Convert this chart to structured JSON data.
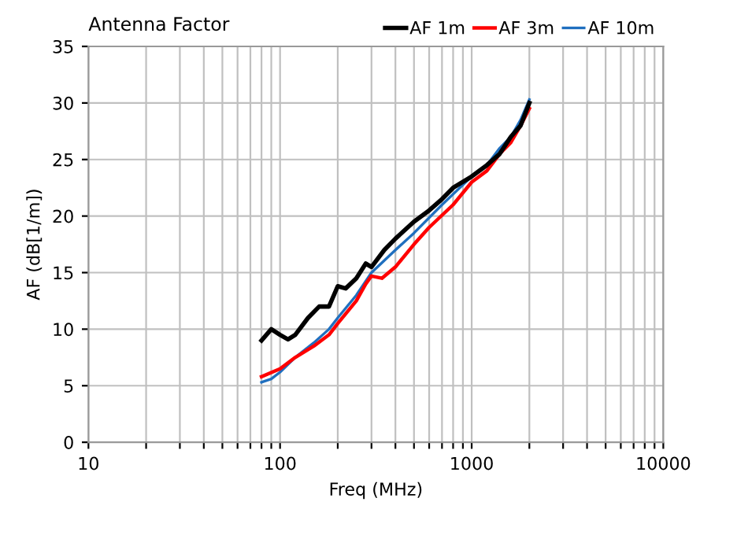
{
  "chart_data": {
    "type": "line",
    "title": "Antenna Factor",
    "xlabel": "Freq (MHz)",
    "ylabel": "AF (dB[1/m])",
    "log": "x",
    "xlim": [
      10,
      10000
    ],
    "ylim": [
      0,
      35
    ],
    "xticks": [
      10,
      {
        "value": 20,
        "label": null
      },
      {
        "value": 30,
        "label": null
      },
      {
        "value": 40,
        "label": null
      },
      {
        "value": 50,
        "label": null
      },
      {
        "value": 60,
        "label": null
      },
      {
        "value": 70,
        "label": null
      },
      {
        "value": 80,
        "label": null
      },
      {
        "value": 90,
        "label": null
      },
      100,
      {
        "value": 200,
        "label": null
      },
      {
        "value": 300,
        "label": null
      },
      {
        "value": 400,
        "label": null
      },
      {
        "value": 500,
        "label": null
      },
      {
        "value": 600,
        "label": null
      },
      {
        "value": 700,
        "label": null
      },
      {
        "value": 800,
        "label": null
      },
      {
        "value": 900,
        "label": null
      },
      1000,
      {
        "value": 2000,
        "label": null
      },
      {
        "value": 3000,
        "label": null
      },
      {
        "value": 4000,
        "label": null
      },
      {
        "value": 5000,
        "label": null
      },
      {
        "value": 6000,
        "label": null
      },
      {
        "value": 7000,
        "label": null
      },
      {
        "value": 8000,
        "label": null
      },
      {
        "value": 9000,
        "label": null
      },
      10000
    ],
    "yticks": [
      0,
      5,
      10,
      15,
      20,
      25,
      30,
      35
    ],
    "grid": true,
    "legend": "top right",
    "marker": "none",
    "line_style": "solid",
    "series": [
      {
        "name": "AF 1m",
        "color": "#000000",
        "x": [
          80,
          90,
          100,
          110,
          120,
          140,
          160,
          180,
          200,
          220,
          250,
          280,
          300,
          350,
          400,
          500,
          600,
          700,
          800,
          1000,
          1200,
          1400,
          1600,
          1800,
          2000
        ],
        "values": [
          9,
          10,
          9.5,
          9.1,
          9.5,
          11,
          12,
          12,
          13.8,
          13.6,
          14.5,
          15.8,
          15.5,
          17,
          18,
          19.5,
          20.5,
          21.5,
          22.5,
          23.5,
          24.5,
          25.5,
          27,
          28,
          30
        ]
      },
      {
        "name": "AF 3m",
        "color": "#ff0000",
        "x": [
          80,
          100,
          120,
          150,
          180,
          200,
          250,
          280,
          300,
          340,
          400,
          500,
          600,
          800,
          1000,
          1200,
          1400,
          1600,
          1800,
          2000
        ],
        "values": [
          5.8,
          6.5,
          7.5,
          8.5,
          9.5,
          10.5,
          12.5,
          14,
          14.7,
          14.5,
          15.5,
          17.5,
          19,
          21,
          23,
          24,
          25.5,
          26.5,
          28,
          29.5
        ]
      },
      {
        "name": "AF 10m",
        "color": "#1f6fbf",
        "x": [
          80,
          90,
          100,
          120,
          150,
          180,
          200,
          250,
          300,
          400,
          500,
          700,
          1000,
          1200,
          1400,
          1600,
          1800,
          2000
        ],
        "values": [
          5.3,
          5.6,
          6.2,
          7.5,
          8.8,
          10,
          11,
          13,
          15,
          17,
          18.5,
          21,
          23.5,
          24.5,
          26,
          27,
          28.5,
          30.3
        ]
      }
    ]
  }
}
